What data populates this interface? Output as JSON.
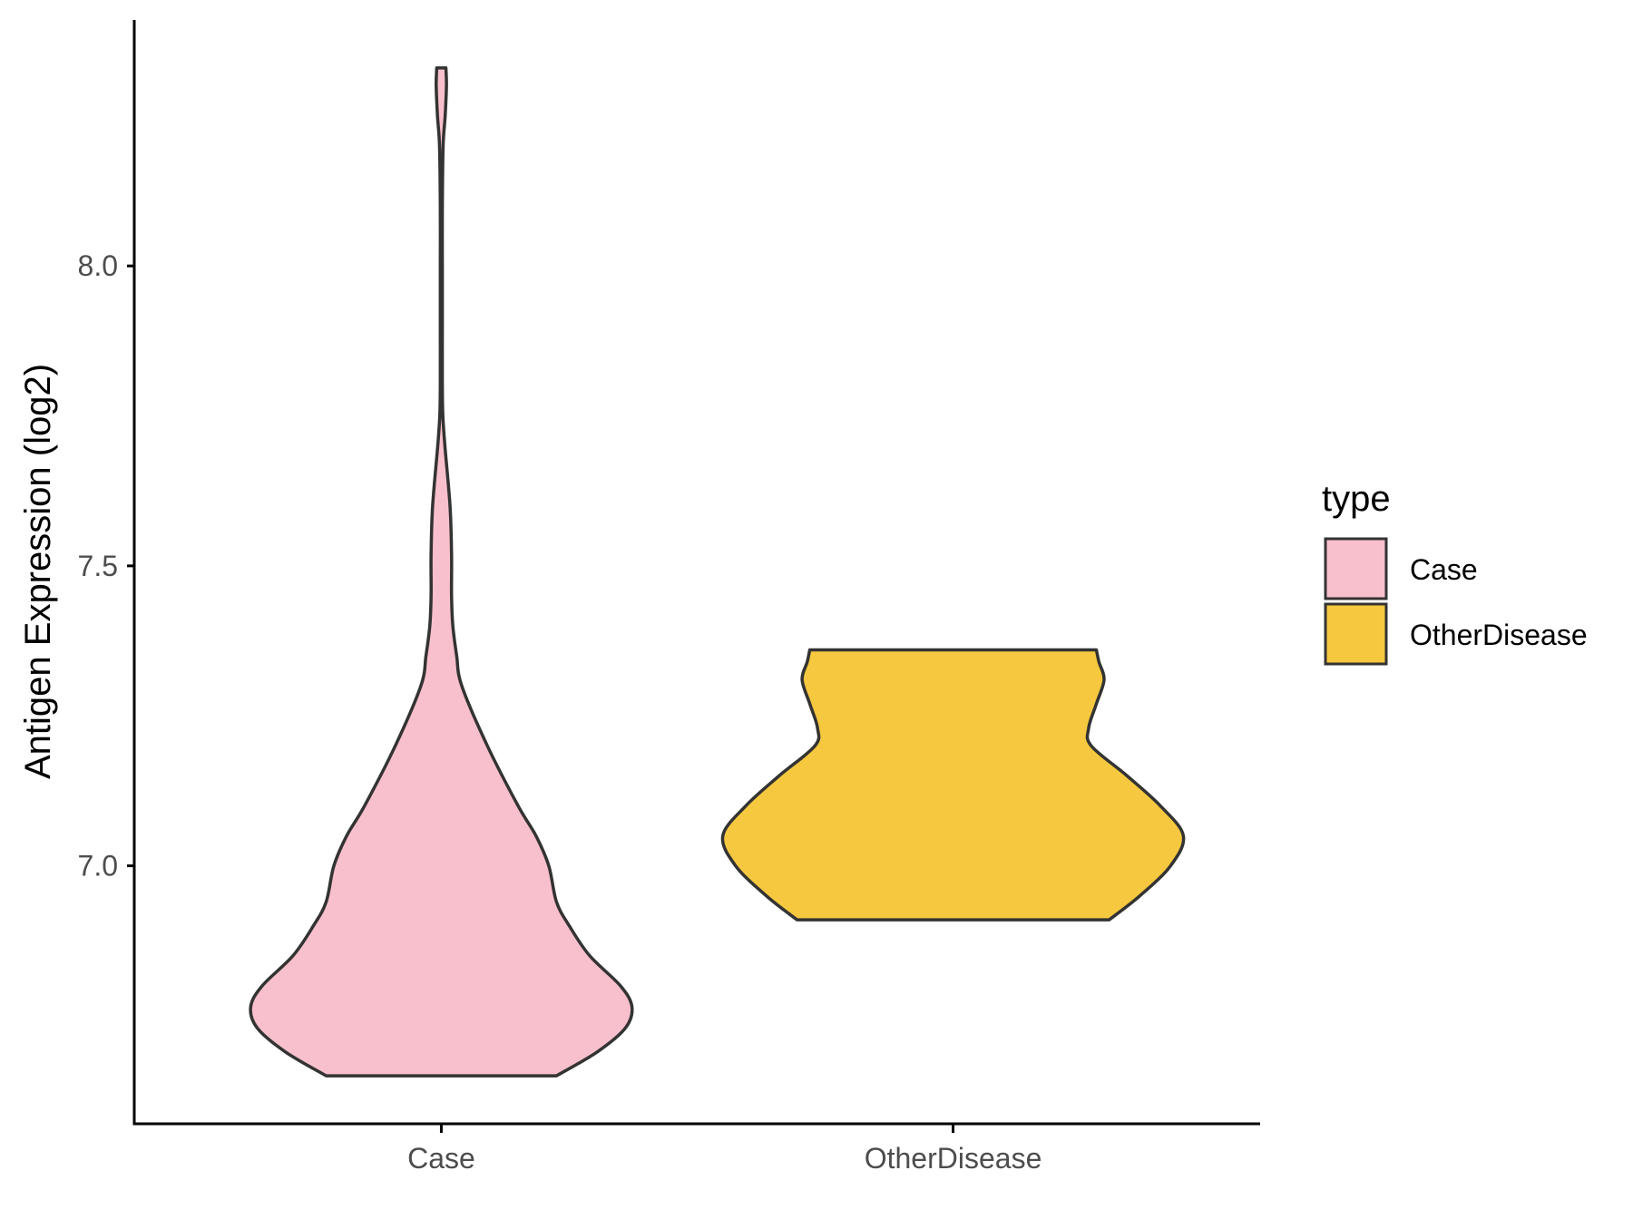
{
  "chart_data": {
    "type": "violin",
    "xlabel": "",
    "ylabel": "Antigen Expression (log2)",
    "categories": [
      "Case",
      "OtherDisease"
    ],
    "y_ticks": [
      {
        "value": 7.0,
        "label": "7.0"
      },
      {
        "value": 7.5,
        "label": "7.5"
      },
      {
        "value": 8.0,
        "label": "8.0"
      }
    ],
    "ylim": [
      6.57,
      8.41
    ],
    "grid": false,
    "legend": {
      "title": "type",
      "position": "right",
      "items": [
        {
          "label": "Case",
          "color": "#F8C0CC"
        },
        {
          "label": "OtherDisease",
          "color": "#F5C83F"
        }
      ]
    },
    "series": [
      {
        "category": "Case",
        "color": "#F8C0CC",
        "min": 6.65,
        "max": 8.33,
        "density_profile": [
          [
            6.65,
            0.45
          ],
          [
            6.69,
            0.61
          ],
          [
            6.73,
            0.72
          ],
          [
            6.765,
            0.745
          ],
          [
            6.8,
            0.7
          ],
          [
            6.85,
            0.58
          ],
          [
            6.9,
            0.5
          ],
          [
            6.94,
            0.45
          ],
          [
            7.0,
            0.42
          ],
          [
            7.05,
            0.37
          ],
          [
            7.1,
            0.3
          ],
          [
            7.2,
            0.18
          ],
          [
            7.3,
            0.08
          ],
          [
            7.35,
            0.06
          ],
          [
            7.4,
            0.045
          ],
          [
            7.45,
            0.04
          ],
          [
            7.52,
            0.04
          ],
          [
            7.6,
            0.034
          ],
          [
            7.7,
            0.014
          ],
          [
            7.75,
            0.006
          ],
          [
            7.8,
            0.004
          ],
          [
            7.9,
            0.004
          ],
          [
            8.0,
            0.004
          ],
          [
            8.1,
            0.004
          ],
          [
            8.2,
            0.007
          ],
          [
            8.25,
            0.015
          ],
          [
            8.3,
            0.02
          ],
          [
            8.33,
            0.018
          ]
        ]
      },
      {
        "category": "OtherDisease",
        "color": "#F5C83F",
        "min": 6.91,
        "max": 7.36,
        "density_profile": [
          [
            6.91,
            0.61
          ],
          [
            6.95,
            0.73
          ],
          [
            7.0,
            0.85
          ],
          [
            7.05,
            0.9
          ],
          [
            7.1,
            0.81
          ],
          [
            7.15,
            0.68
          ],
          [
            7.2,
            0.54
          ],
          [
            7.23,
            0.53
          ],
          [
            7.27,
            0.56
          ],
          [
            7.31,
            0.59
          ],
          [
            7.34,
            0.57
          ],
          [
            7.36,
            0.56
          ]
        ]
      }
    ]
  }
}
